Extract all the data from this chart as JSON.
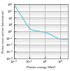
{
  "title": "",
  "xlabel": "Photon energy (MeV)",
  "ylabel": "Photon cross section (barns/atom)",
  "xmin": 0.001,
  "xmax": 10000.0,
  "ymin": 0.0001,
  "ymax": 10000.0,
  "line_color": "#5bc8d8",
  "bg_color": "#ffffff",
  "grid_major_color": "#999999",
  "grid_minor_color": "#bbbbbb",
  "x_data": [
    0.001,
    0.002,
    0.003,
    0.005,
    0.008,
    0.01,
    0.015,
    0.02,
    0.03,
    0.05,
    0.08,
    0.1,
    0.15,
    0.2,
    0.3,
    0.5,
    0.8,
    1.0,
    1.5,
    2.0,
    3.0,
    5.0,
    8.0,
    10.0,
    15.0,
    20.0,
    30.0,
    50.0,
    80.0,
    100.0,
    200.0,
    500.0,
    1000.0,
    5000.0,
    10000.0
  ],
  "y_data": [
    8000,
    3000,
    1500,
    600,
    250,
    160,
    80,
    50,
    22,
    9,
    4,
    3,
    2,
    1.8,
    1.5,
    1.3,
    1.2,
    1.15,
    1.1,
    1.0,
    0.9,
    0.8,
    0.75,
    0.7,
    0.6,
    0.55,
    0.45,
    0.35,
    0.25,
    0.22,
    0.15,
    0.09,
    0.07,
    0.06,
    0.07
  ]
}
